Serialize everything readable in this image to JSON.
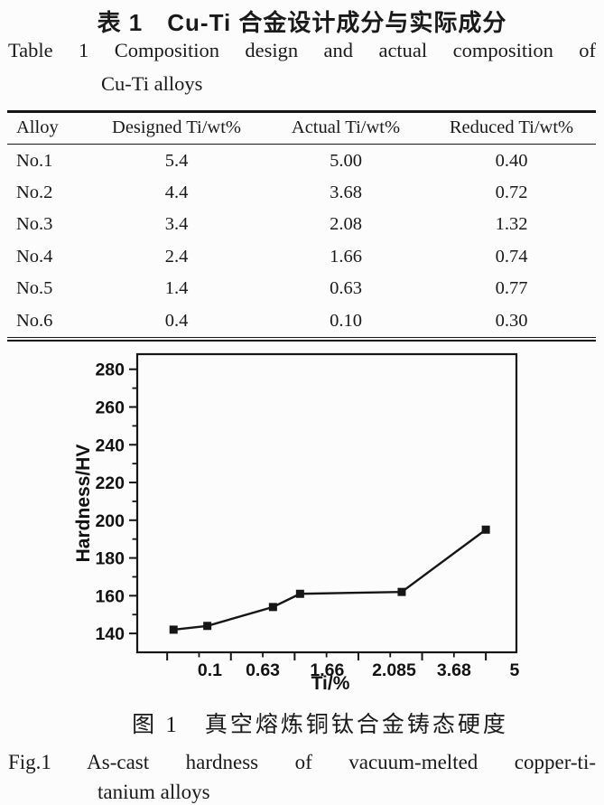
{
  "page": {
    "table_title_zh": "表 1　Cu-Ti 合金设计成分与实际成分",
    "table_title_en_line1": "Table 1 Composition design and actual composition of",
    "table_title_en_line2": "Cu-Ti alloys",
    "figure_caption_zh": "图 1　真空熔炼铜钛合金铸态硬度",
    "figure_caption_en_line1": "Fig.1 As-cast hardness of vacuum-melted copper-ti-",
    "figure_caption_en_line2": "tanium alloys",
    "text_color": "#1a1a1a",
    "background_color": "#fcfcfc"
  },
  "table": {
    "columns": [
      "Alloy",
      "Designed Ti/wt%",
      "Actual Ti/wt%",
      "Reduced Ti/wt%"
    ],
    "rows": [
      [
        "No.1",
        "5.4",
        "5.00",
        "0.40"
      ],
      [
        "No.2",
        "4.4",
        "3.68",
        "0.72"
      ],
      [
        "No.3",
        "3.4",
        "2.08",
        "1.32"
      ],
      [
        "No.4",
        "2.4",
        "1.66",
        "0.74"
      ],
      [
        "No.5",
        "1.4",
        "0.63",
        "0.77"
      ],
      [
        "No.6",
        "0.4",
        "0.10",
        "0.30"
      ]
    ]
  },
  "chart_data": {
    "type": "line",
    "title": "",
    "xlabel": "Ti/%",
    "ylabel": "Hardness/HV",
    "x": [
      0.1,
      0.63,
      1.66,
      2.085,
      3.68,
      5.0
    ],
    "y": [
      142,
      144,
      154,
      161,
      162,
      195
    ],
    "marker": "filled-square",
    "line_color": "#161616",
    "axis_color": "#161616",
    "xlim": [
      -0.47,
      5.48
    ],
    "ylim": [
      130,
      288
    ],
    "x_major_ticks": [
      0,
      1,
      2,
      3,
      4,
      5
    ],
    "x_minor_ticks": [
      0.5,
      1.5,
      2.5,
      3.5,
      4.5
    ],
    "x_tick_labels": [
      {
        "text": "0.1",
        "pos": 0.67
      },
      {
        "text": "0.63",
        "pos": 1.5
      },
      {
        "text": "1.66",
        "pos": 2.51
      },
      {
        "text": "2.085",
        "pos": 3.56
      },
      {
        "text": "3.68",
        "pos": 4.5
      },
      {
        "text": "5",
        "pos": 5.45
      }
    ],
    "y_major_ticks": [
      140,
      160,
      180,
      200,
      220,
      240,
      260,
      280
    ],
    "y_minor_ticks": [
      150,
      170,
      190,
      210,
      230,
      250,
      270
    ],
    "grid": false,
    "legend": false
  }
}
